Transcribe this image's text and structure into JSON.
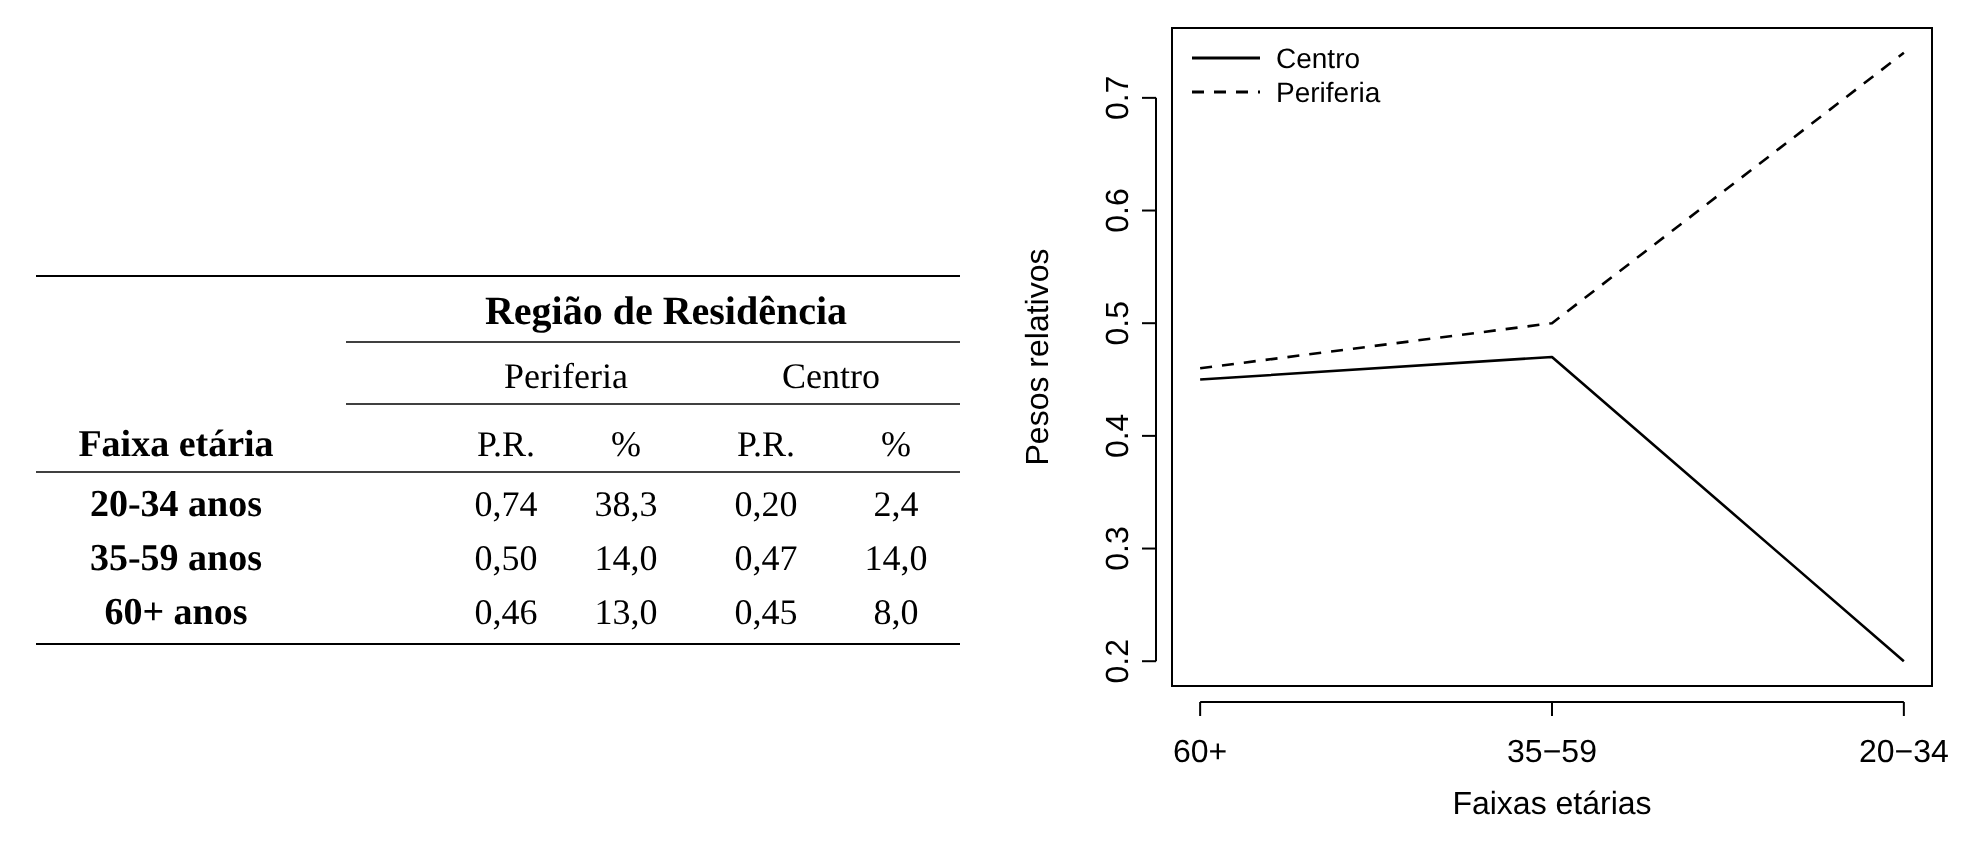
{
  "chart_data": [
    {
      "type": "other",
      "title": "Região de Residência",
      "ylabel": "Faixa etária",
      "annotations": [
        "Periferia",
        "Centro"
      ],
      "categories": [
        "P.R.",
        "%",
        "P.R.",
        "%"
      ],
      "y_categories": [
        "20-34 anos",
        "35-59 anos",
        "60+ anos"
      ],
      "cell_labels": [
        [
          "0,74",
          "38,3",
          "0,20",
          "2,4"
        ],
        [
          "0,50",
          "14,0",
          "0,47",
          "14,0"
        ],
        [
          "0,46",
          "13,0",
          "0,45",
          "8,0"
        ]
      ]
    },
    {
      "type": "line",
      "xlabel": "Faixas etárias",
      "ylabel": "Pesos relativos",
      "categories": [
        "60+",
        "35−59",
        "20−34"
      ],
      "ylim": [
        0.178,
        0.762
      ],
      "yticks": [
        0.2,
        0.3,
        0.4,
        0.5,
        0.6,
        0.7
      ],
      "legend": "top left",
      "grid": false,
      "series": [
        {
          "name": "Centro",
          "color": "#000000",
          "line_style": "solid",
          "values": [
            0.45,
            0.47,
            0.2
          ]
        },
        {
          "name": "Periferia",
          "color": "#000000",
          "line_style": "dashed",
          "values": [
            0.46,
            0.5,
            0.74
          ]
        }
      ]
    }
  ]
}
